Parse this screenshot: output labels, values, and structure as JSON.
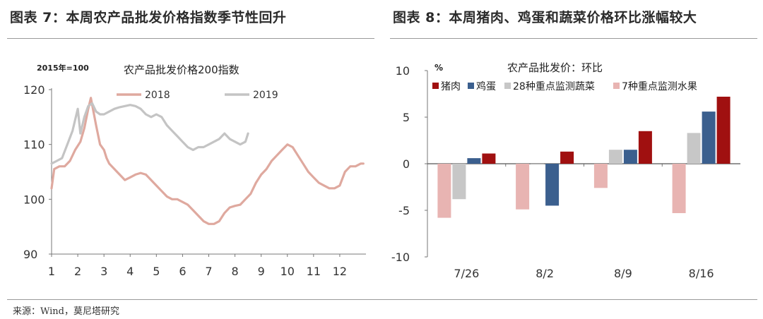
{
  "figures": {
    "left_title": "图表 7：本周农产品批发价格指数季节性回升",
    "right_title": "图表 8：本周猪肉、鸡蛋和蔬菜价格环比涨幅较大"
  },
  "source": "来源：Wind，莫尼塔研究",
  "chart_data": [
    {
      "type": "line",
      "title": "农产品批发价格200指数",
      "unit_label": "2015年=100",
      "xlabel": "",
      "ylabel": "",
      "xlim": [
        1,
        13
      ],
      "ylim": [
        90,
        120
      ],
      "x_ticks": [
        "1",
        "2",
        "3",
        "4",
        "5",
        "6",
        "7",
        "8",
        "9",
        "10",
        "11",
        "12"
      ],
      "y_ticks": [
        "90",
        "100",
        "110",
        "120"
      ],
      "legend_position": "top",
      "grid": false,
      "colors": {
        "2018": "#dfa99f",
        "2019": "#c4c4c4"
      },
      "series": [
        {
          "name": "2018",
          "points": [
            [
              1.0,
              102.0
            ],
            [
              1.1,
              105.5
            ],
            [
              1.3,
              106.0
            ],
            [
              1.5,
              106.0
            ],
            [
              1.7,
              107.0
            ],
            [
              1.9,
              109.0
            ],
            [
              2.1,
              110.5
            ],
            [
              2.25,
              113.0
            ],
            [
              2.4,
              116.5
            ],
            [
              2.5,
              118.5
            ],
            [
              2.6,
              116.0
            ],
            [
              2.7,
              113.5
            ],
            [
              2.85,
              110.0
            ],
            [
              3.0,
              109.0
            ],
            [
              3.1,
              107.5
            ],
            [
              3.2,
              106.5
            ],
            [
              3.4,
              105.5
            ],
            [
              3.6,
              104.5
            ],
            [
              3.8,
              103.5
            ],
            [
              4.0,
              104.0
            ],
            [
              4.2,
              104.5
            ],
            [
              4.4,
              104.8
            ],
            [
              4.6,
              104.5
            ],
            [
              4.8,
              103.5
            ],
            [
              5.0,
              102.5
            ],
            [
              5.2,
              101.5
            ],
            [
              5.4,
              100.5
            ],
            [
              5.6,
              100.0
            ],
            [
              5.8,
              100.0
            ],
            [
              6.0,
              99.5
            ],
            [
              6.2,
              99.0
            ],
            [
              6.4,
              98.0
            ],
            [
              6.6,
              97.0
            ],
            [
              6.8,
              96.0
            ],
            [
              7.0,
              95.5
            ],
            [
              7.2,
              95.5
            ],
            [
              7.4,
              96.0
            ],
            [
              7.6,
              97.5
            ],
            [
              7.8,
              98.5
            ],
            [
              8.0,
              98.8
            ],
            [
              8.2,
              99.0
            ],
            [
              8.4,
              100.0
            ],
            [
              8.6,
              101.0
            ],
            [
              8.8,
              103.0
            ],
            [
              9.0,
              104.5
            ],
            [
              9.2,
              105.5
            ],
            [
              9.4,
              107.0
            ],
            [
              9.6,
              108.0
            ],
            [
              9.8,
              109.0
            ],
            [
              10.0,
              110.0
            ],
            [
              10.2,
              109.5
            ],
            [
              10.4,
              108.0
            ],
            [
              10.6,
              106.5
            ],
            [
              10.8,
              105.0
            ],
            [
              11.0,
              104.0
            ],
            [
              11.2,
              103.0
            ],
            [
              11.4,
              102.5
            ],
            [
              11.6,
              102.0
            ],
            [
              11.8,
              102.0
            ],
            [
              12.0,
              102.5
            ],
            [
              12.2,
              105.0
            ],
            [
              12.4,
              106.0
            ],
            [
              12.6,
              106.0
            ],
            [
              12.8,
              106.5
            ],
            [
              12.9,
              106.5
            ]
          ]
        },
        {
          "name": "2019",
          "points": [
            [
              1.0,
              106.5
            ],
            [
              1.2,
              107.0
            ],
            [
              1.4,
              107.5
            ],
            [
              1.6,
              110.0
            ],
            [
              1.8,
              112.5
            ],
            [
              2.0,
              116.5
            ],
            [
              2.1,
              112.0
            ],
            [
              2.25,
              115.0
            ],
            [
              2.4,
              117.0
            ],
            [
              2.55,
              117.5
            ],
            [
              2.7,
              116.0
            ],
            [
              2.85,
              115.5
            ],
            [
              3.0,
              115.5
            ],
            [
              3.2,
              116.0
            ],
            [
              3.4,
              116.5
            ],
            [
              3.6,
              116.8
            ],
            [
              3.8,
              117.0
            ],
            [
              4.0,
              117.2
            ],
            [
              4.2,
              117.0
            ],
            [
              4.4,
              116.5
            ],
            [
              4.6,
              115.5
            ],
            [
              4.8,
              115.0
            ],
            [
              5.0,
              115.5
            ],
            [
              5.2,
              115.0
            ],
            [
              5.4,
              113.5
            ],
            [
              5.6,
              112.5
            ],
            [
              5.8,
              111.5
            ],
            [
              6.0,
              110.5
            ],
            [
              6.2,
              109.5
            ],
            [
              6.4,
              109.0
            ],
            [
              6.6,
              109.5
            ],
            [
              6.8,
              109.5
            ],
            [
              7.0,
              110.0
            ],
            [
              7.2,
              110.5
            ],
            [
              7.4,
              111.0
            ],
            [
              7.6,
              112.0
            ],
            [
              7.8,
              111.0
            ],
            [
              8.0,
              110.5
            ],
            [
              8.2,
              110.0
            ],
            [
              8.4,
              110.5
            ],
            [
              8.5,
              112.0
            ]
          ]
        }
      ]
    },
    {
      "type": "bar",
      "title": "农产品批发价：环比",
      "unit_label": "%",
      "xlabel": "",
      "ylabel": "",
      "ylim": [
        -10,
        10
      ],
      "y_ticks": [
        "10",
        "5",
        "0",
        "-5",
        "-10"
      ],
      "categories": [
        "7/26",
        "8/2",
        "8/9",
        "8/16"
      ],
      "legend_position": "top",
      "grid": false,
      "series": [
        {
          "name": "7种重点监测水果",
          "color": "#e8b4b2",
          "values": [
            -5.8,
            -4.9,
            -2.6,
            -5.3
          ]
        },
        {
          "name": "28种重点监测蔬菜",
          "color": "#c7c7c7",
          "values": [
            -3.8,
            -0.1,
            1.5,
            3.3
          ]
        },
        {
          "name": "鸡蛋",
          "color": "#3b5f8e",
          "values": [
            0.6,
            -4.5,
            1.5,
            5.6
          ]
        },
        {
          "name": "猪肉",
          "color": "#a01010",
          "values": [
            1.1,
            1.3,
            3.5,
            7.2
          ]
        }
      ],
      "legend_order": [
        "猪肉",
        "鸡蛋",
        "28种重点监测蔬菜",
        "7种重点监测水果"
      ]
    }
  ]
}
